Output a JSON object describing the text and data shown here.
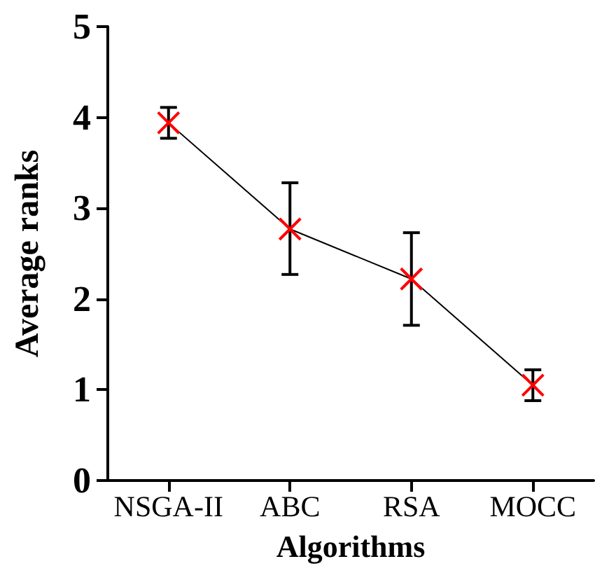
{
  "chart_data": {
    "type": "line",
    "xlabel": "Algorithms",
    "ylabel": "Average ranks",
    "categories": [
      "NSGA-II",
      "ABC",
      "RSA",
      "MOCC"
    ],
    "series": [
      {
        "color": "#ff0000",
        "values": [
          3.94,
          2.77,
          2.22,
          1.05
        ],
        "errors": [
          [
            3.77,
            4.11
          ],
          [
            2.27,
            3.28
          ],
          [
            1.71,
            2.73
          ],
          [
            0.88,
            1.22
          ]
        ]
      }
    ],
    "ylim": [
      0,
      5
    ],
    "yticks": [
      0,
      1,
      2,
      3,
      4,
      5
    ],
    "marker": "cross",
    "line_style": "solid"
  }
}
